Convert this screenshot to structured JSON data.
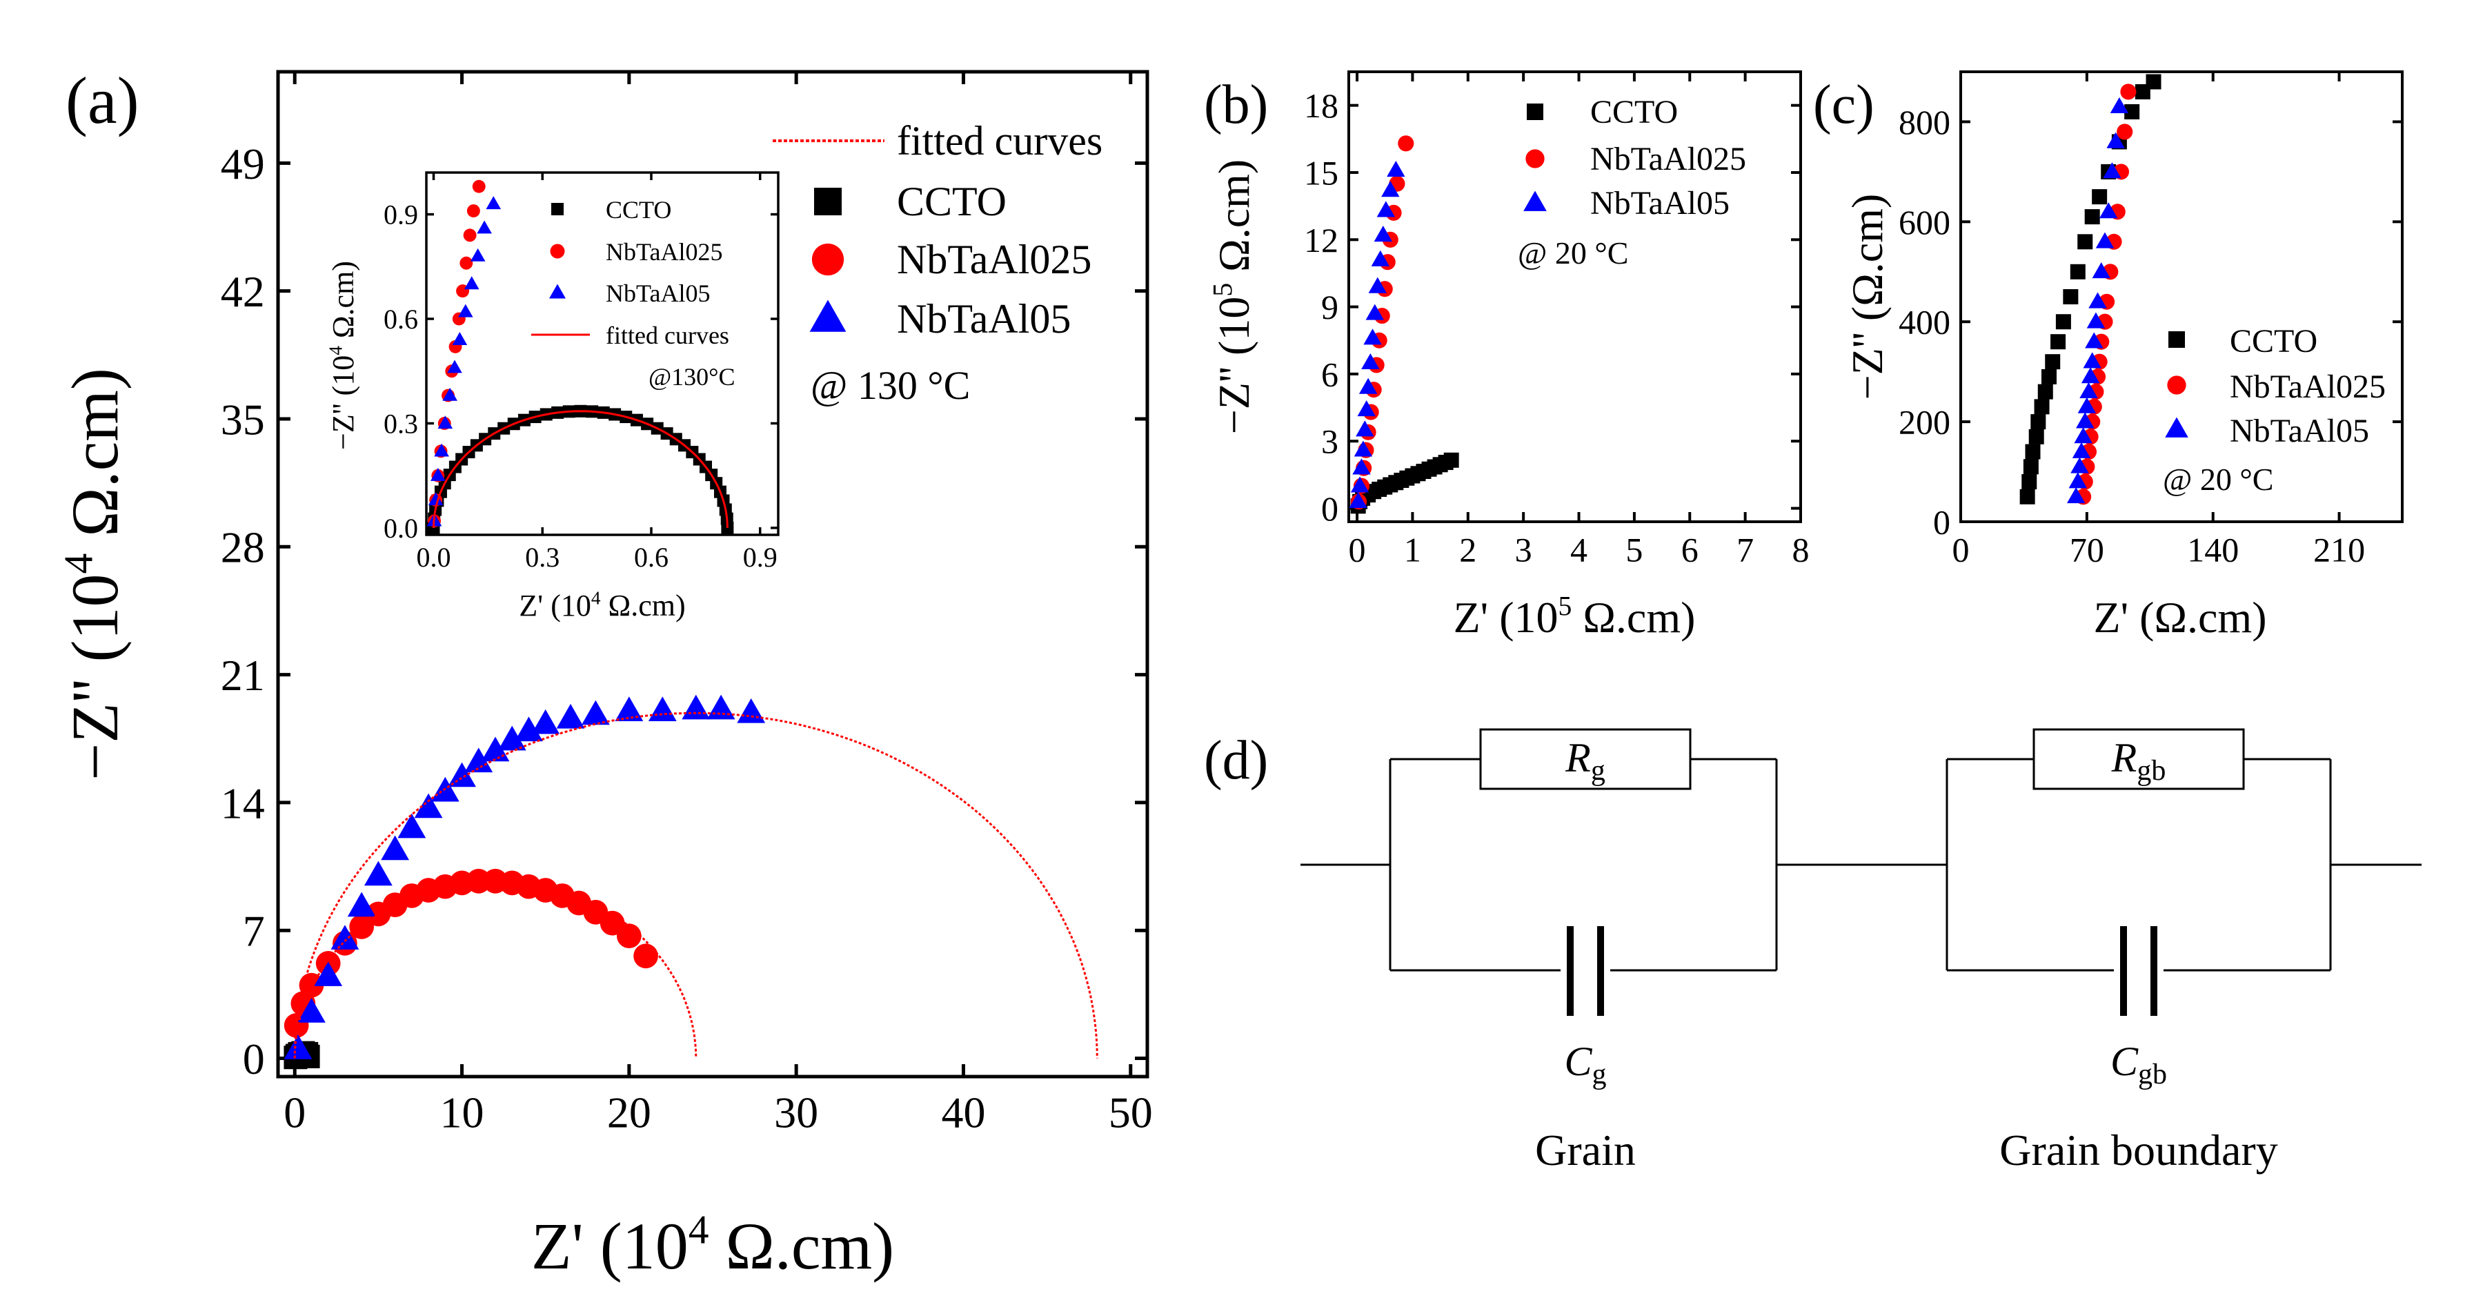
{
  "colors": {
    "ccto": "#000000",
    "nb025": "#ff0000",
    "nb05": "#0000ff",
    "fit": "#ff0000"
  },
  "chart_data": [
    {
      "id": "a",
      "panel_label": "(a)",
      "type": "scatter",
      "xlabel_main": "Z' (10",
      "xlabel_exp": "4",
      "xlabel_unit": " Ω.cm)",
      "ylabel_main": "−Z'' (10",
      "ylabel_exp": "4",
      "ylabel_unit": " Ω.cm)",
      "xlim": [
        -1,
        51
      ],
      "ylim": [
        -1,
        54
      ],
      "xticks": [
        0,
        10,
        20,
        30,
        40,
        50
      ],
      "xtick_labels": [
        "0",
        "10",
        "20",
        "30",
        "40",
        "50"
      ],
      "yticks": [
        0,
        7,
        14,
        21,
        28,
        35,
        42,
        49
      ],
      "ytick_labels": [
        "0",
        "7",
        "14",
        "21",
        "28",
        "35",
        "42",
        "49"
      ],
      "legend": [
        "fitted curves",
        "CCTO",
        "NbTaAl025",
        "NbTaAl05"
      ],
      "annotation": "@ 130 °C",
      "series": [
        {
          "name": "CCTO",
          "marker": "square",
          "points": [
            [
              0.05,
              0.05
            ],
            [
              0.15,
              0.15
            ],
            [
              0.3,
              0.25
            ],
            [
              0.5,
              0.3
            ],
            [
              0.7,
              0.25
            ],
            [
              0.8,
              0.1
            ]
          ]
        },
        {
          "name": "NbTaAl025",
          "marker": "circle",
          "points": [
            [
              0.1,
              1.8
            ],
            [
              0.5,
              3.0
            ],
            [
              1.0,
              4.0
            ],
            [
              2.0,
              5.2
            ],
            [
              3.0,
              6.3
            ],
            [
              4.0,
              7.2
            ],
            [
              5.0,
              7.9
            ],
            [
              6.0,
              8.4
            ],
            [
              7.0,
              8.9
            ],
            [
              8.0,
              9.2
            ],
            [
              9.0,
              9.4
            ],
            [
              10.0,
              9.6
            ],
            [
              11.0,
              9.7
            ],
            [
              12.0,
              9.7
            ],
            [
              13.0,
              9.6
            ],
            [
              14.0,
              9.4
            ],
            [
              15.0,
              9.2
            ],
            [
              16.0,
              8.9
            ],
            [
              17.0,
              8.5
            ],
            [
              18.0,
              8.0
            ],
            [
              19.0,
              7.4
            ],
            [
              20.0,
              6.7
            ],
            [
              21.0,
              5.6
            ]
          ]
        },
        {
          "name": "NbTaAl05",
          "marker": "triangle",
          "points": [
            [
              0.2,
              0.5
            ],
            [
              1.0,
              2.5
            ],
            [
              2.0,
              4.5
            ],
            [
              3.0,
              6.5
            ],
            [
              4.0,
              8.3
            ],
            [
              5.0,
              10.0
            ],
            [
              6.0,
              11.4
            ],
            [
              7.0,
              12.6
            ],
            [
              8.0,
              13.7
            ],
            [
              9.0,
              14.6
            ],
            [
              10.0,
              15.4
            ],
            [
              11.0,
              16.2
            ],
            [
              12.0,
              16.8
            ],
            [
              13.0,
              17.4
            ],
            [
              14.0,
              17.9
            ],
            [
              15.0,
              18.3
            ],
            [
              16.5,
              18.6
            ],
            [
              18.0,
              18.8
            ],
            [
              20.0,
              19.0
            ],
            [
              22.0,
              19.0
            ],
            [
              24.0,
              19.1
            ],
            [
              25.5,
              19.1
            ],
            [
              27.3,
              18.9
            ]
          ]
        },
        {
          "name": "fit-025",
          "marker": "fit",
          "center": 12.0,
          "radius": 12.0,
          "ymax": 9.7
        },
        {
          "name": "fit-05",
          "marker": "fit",
          "center": 24.0,
          "radius": 24.0,
          "ymax": 18.9
        }
      ]
    },
    {
      "id": "a_inset",
      "type": "scatter",
      "xlabel_main": "Z' (10",
      "xlabel_exp": "4",
      "xlabel_unit": " Ω.cm)",
      "ylabel_main": "−Z'' (10",
      "ylabel_exp": "4",
      "ylabel_unit": " Ω.cm)",
      "xlim": [
        -0.02,
        0.95
      ],
      "ylim": [
        -0.02,
        1.02
      ],
      "xticks": [
        0.0,
        0.3,
        0.6,
        0.9
      ],
      "xtick_labels": [
        "0.0",
        "0.3",
        "0.6",
        "0.9"
      ],
      "yticks": [
        0.0,
        0.3,
        0.6,
        0.9
      ],
      "ytick_labels": [
        "0.0",
        "0.3",
        "0.6",
        "0.9"
      ],
      "legend": [
        "CCTO",
        "NbTaAl025",
        "NbTaAl05",
        "fitted curves"
      ],
      "annotation": "@130°C",
      "series": [
        {
          "name": "CCTO",
          "marker": "square",
          "center": 0.405,
          "radius": 0.405,
          "ymax": 0.335
        },
        {
          "name": "NbTaAl025",
          "marker": "circle",
          "points": [
            [
              0.002,
              0.02
            ],
            [
              0.006,
              0.08
            ],
            [
              0.012,
              0.15
            ],
            [
              0.02,
              0.22
            ],
            [
              0.03,
              0.3
            ],
            [
              0.04,
              0.38
            ],
            [
              0.05,
              0.45
            ],
            [
              0.06,
              0.52
            ],
            [
              0.07,
              0.6
            ],
            [
              0.08,
              0.68
            ],
            [
              0.09,
              0.76
            ],
            [
              0.1,
              0.84
            ],
            [
              0.11,
              0.91
            ],
            [
              0.125,
              0.98
            ]
          ]
        },
        {
          "name": "NbTaAl05",
          "marker": "triangle",
          "points": [
            [
              0.002,
              0.02
            ],
            [
              0.006,
              0.08
            ],
            [
              0.012,
              0.15
            ],
            [
              0.022,
              0.22
            ],
            [
              0.032,
              0.3
            ],
            [
              0.045,
              0.38
            ],
            [
              0.058,
              0.46
            ],
            [
              0.072,
              0.54
            ],
            [
              0.088,
              0.62
            ],
            [
              0.105,
              0.7
            ],
            [
              0.122,
              0.78
            ],
            [
              0.14,
              0.86
            ],
            [
              0.165,
              0.93
            ]
          ]
        }
      ]
    },
    {
      "id": "b",
      "panel_label": "(b)",
      "type": "scatter",
      "xlabel_main": "Z' (10",
      "xlabel_exp": "5",
      "xlabel_unit": " Ω.cm)",
      "ylabel_main": "−Z'' (10",
      "ylabel_exp": "5",
      "ylabel_unit": " Ω.cm)",
      "xlim": [
        -0.15,
        8.0
      ],
      "ylim": [
        -0.6,
        19.5
      ],
      "xticks": [
        0,
        1,
        2,
        3,
        4,
        5,
        6,
        7,
        8
      ],
      "xtick_labels": [
        "0",
        "1",
        "2",
        "3",
        "4",
        "5",
        "6",
        "7",
        "8"
      ],
      "yticks": [
        0,
        3,
        6,
        9,
        12,
        15,
        18
      ],
      "ytick_labels": [
        "0",
        "3",
        "6",
        "9",
        "12",
        "15",
        "18"
      ],
      "legend": [
        "CCTO",
        "NbTaAl025",
        "NbTaAl05"
      ],
      "annotation": "@ 20 °C",
      "series": [
        {
          "name": "CCTO",
          "marker": "square",
          "points": [
            [
              0.02,
              0.1
            ],
            [
              0.05,
              0.3
            ],
            [
              0.1,
              0.45
            ],
            [
              0.2,
              0.6
            ],
            [
              0.3,
              0.75
            ],
            [
              0.4,
              0.85
            ],
            [
              0.5,
              0.95
            ],
            [
              0.6,
              1.05
            ],
            [
              0.7,
              1.15
            ],
            [
              0.8,
              1.25
            ],
            [
              0.9,
              1.35
            ],
            [
              1.0,
              1.45
            ],
            [
              1.1,
              1.55
            ],
            [
              1.2,
              1.65
            ],
            [
              1.3,
              1.75
            ],
            [
              1.4,
              1.85
            ],
            [
              1.5,
              1.95
            ],
            [
              1.6,
              2.05
            ],
            [
              1.7,
              2.15
            ]
          ]
        },
        {
          "name": "NbTaAl025",
          "marker": "circle",
          "points": [
            [
              0.03,
              0.3
            ],
            [
              0.08,
              1.0
            ],
            [
              0.12,
              1.8
            ],
            [
              0.16,
              2.6
            ],
            [
              0.2,
              3.4
            ],
            [
              0.25,
              4.3
            ],
            [
              0.3,
              5.3
            ],
            [
              0.35,
              6.4
            ],
            [
              0.4,
              7.5
            ],
            [
              0.45,
              8.6
            ],
            [
              0.5,
              9.8
            ],
            [
              0.55,
              11.0
            ],
            [
              0.6,
              12.0
            ],
            [
              0.66,
              13.2
            ],
            [
              0.72,
              14.5
            ],
            [
              0.88,
              16.3
            ]
          ]
        },
        {
          "name": "NbTaAl05",
          "marker": "triangle",
          "points": [
            [
              0.02,
              0.3
            ],
            [
              0.05,
              1.0
            ],
            [
              0.08,
              1.8
            ],
            [
              0.11,
              2.6
            ],
            [
              0.14,
              3.5
            ],
            [
              0.17,
              4.4
            ],
            [
              0.2,
              5.4
            ],
            [
              0.24,
              6.5
            ],
            [
              0.28,
              7.6
            ],
            [
              0.32,
              8.7
            ],
            [
              0.37,
              9.9
            ],
            [
              0.42,
              11.1
            ],
            [
              0.47,
              12.2
            ],
            [
              0.52,
              13.3
            ],
            [
              0.6,
              14.2
            ],
            [
              0.7,
              15.1
            ]
          ]
        }
      ]
    },
    {
      "id": "c",
      "panel_label": "(c)",
      "type": "scatter",
      "xlabel_main": "Z' (Ω.cm)",
      "xlabel_exp": "",
      "xlabel_unit": "",
      "ylabel_main": "−Z'' (Ω.cm)",
      "ylabel_exp": "",
      "ylabel_unit": "",
      "xlim": [
        0,
        245
      ],
      "ylim": [
        0,
        900
      ],
      "xticks": [
        0,
        70,
        140,
        210
      ],
      "xtick_labels": [
        "0",
        "70",
        "140",
        "210"
      ],
      "yticks": [
        0,
        200,
        400,
        600,
        800
      ],
      "ytick_labels": [
        "0",
        "200",
        "400",
        "600",
        "800"
      ],
      "legend": [
        "CCTO",
        "NbTaAl025",
        "NbTaAl05"
      ],
      "annotation": "@ 20 °C",
      "series": [
        {
          "name": "CCTO",
          "marker": "square",
          "points": [
            [
              37,
              50
            ],
            [
              38,
              80
            ],
            [
              39,
              110
            ],
            [
              40,
              140
            ],
            [
              42,
              170
            ],
            [
              43,
              200
            ],
            [
              45,
              230
            ],
            [
              47,
              260
            ],
            [
              49,
              290
            ],
            [
              51,
              320
            ],
            [
              54,
              360
            ],
            [
              57,
              400
            ],
            [
              61,
              450
            ],
            [
              65,
              500
            ],
            [
              69,
              560
            ],
            [
              73,
              610
            ],
            [
              77,
              650
            ],
            [
              82,
              700
            ],
            [
              88,
              760
            ],
            [
              95,
              820
            ],
            [
              101,
              860
            ],
            [
              107,
              880
            ]
          ]
        },
        {
          "name": "NbTaAl025",
          "marker": "circle",
          "points": [
            [
              68,
              50
            ],
            [
              69,
              80
            ],
            [
              70,
              110
            ],
            [
              71,
              140
            ],
            [
              72,
              170
            ],
            [
              73,
              200
            ],
            [
              74,
              230
            ],
            [
              75,
              260
            ],
            [
              76,
              290
            ],
            [
              77,
              320
            ],
            [
              78,
              360
            ],
            [
              80,
              400
            ],
            [
              81,
              440
            ],
            [
              83,
              500
            ],
            [
              85,
              560
            ],
            [
              87,
              620
            ],
            [
              89,
              700
            ],
            [
              91,
              780
            ],
            [
              93,
              860
            ]
          ]
        },
        {
          "name": "NbTaAl05",
          "marker": "triangle",
          "points": [
            [
              64,
              50
            ],
            [
              65,
              80
            ],
            [
              66,
              110
            ],
            [
              67,
              140
            ],
            [
              68,
              170
            ],
            [
              69,
              200
            ],
            [
              70,
              230
            ],
            [
              71,
              260
            ],
            [
              72,
              290
            ],
            [
              73,
              320
            ],
            [
              74,
              360
            ],
            [
              75,
              400
            ],
            [
              76,
              440
            ],
            [
              78,
              500
            ],
            [
              80,
              560
            ],
            [
              82,
              620
            ],
            [
              84,
              700
            ],
            [
              86,
              760
            ],
            [
              88,
              830
            ]
          ]
        }
      ]
    }
  ],
  "circuit": {
    "panel_label": "(d)",
    "r_g": "R",
    "r_g_sub": "g",
    "r_gb": "R",
    "r_gb_sub": "gb",
    "c_g": "C",
    "c_g_sub": "g",
    "c_gb": "C",
    "c_gb_sub": "gb",
    "grain_label": "Grain",
    "boundary_label": "Grain boundary"
  }
}
